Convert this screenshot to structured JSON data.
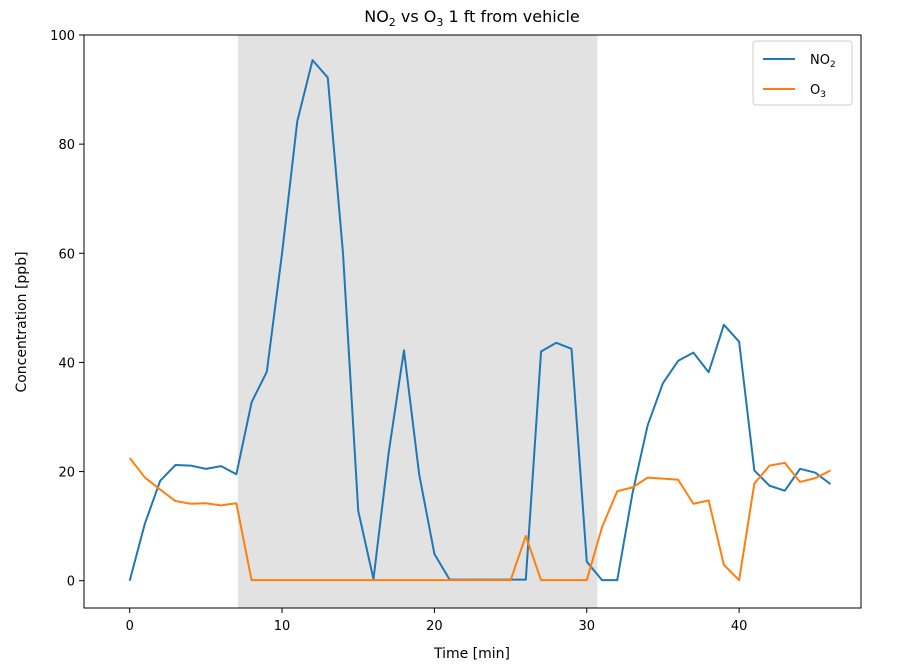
{
  "chart_data": {
    "type": "line",
    "title": {
      "prefix": "NO",
      "sub1": "2",
      "mid": " vs O",
      "sub2": "3",
      "suffix": " 1 ft from vehicle"
    },
    "xlabel": "Time [min]",
    "ylabel": "Concentration [ppb]",
    "xlim": [
      -3,
      48
    ],
    "ylim": [
      -5,
      100
    ],
    "xticks": [
      0,
      10,
      20,
      30,
      40
    ],
    "yticks": [
      0,
      20,
      40,
      60,
      80,
      100
    ],
    "shaded_region": {
      "x0": 7.1,
      "x1": 30.7,
      "color": "#e2e2e2"
    },
    "legend_location": "upper right",
    "series": [
      {
        "name": {
          "base": "NO",
          "sub": "2"
        },
        "color": "#1f77b4",
        "x": [
          0,
          1,
          2,
          3,
          4,
          5,
          6,
          7,
          8,
          9,
          10,
          11,
          12,
          13,
          14,
          15,
          16,
          17,
          18,
          19,
          20,
          21,
          22,
          23,
          24,
          25,
          26,
          27,
          28,
          29,
          30,
          31,
          32,
          33,
          34,
          35,
          36,
          37,
          38,
          39,
          40,
          41,
          42,
          43,
          44,
          45,
          46
        ],
        "y": [
          0,
          10.5,
          18.3,
          21.2,
          21.1,
          20.5,
          21.0,
          19.5,
          32.7,
          38.3,
          60.0,
          84.2,
          95.4,
          92.2,
          60.0,
          12.8,
          0.3,
          23.5,
          42.2,
          19.5,
          4.9,
          0.2,
          0.2,
          0.2,
          0.2,
          0.2,
          0.2,
          42.0,
          43.6,
          42.5,
          3.5,
          0.1,
          0.1,
          16.0,
          28.5,
          36.2,
          40.3,
          41.8,
          38.2,
          46.9,
          43.8,
          20.2,
          17.4,
          16.5,
          20.5,
          19.8,
          17.7
        ]
      },
      {
        "name": {
          "base": "O",
          "sub": "3"
        },
        "color": "#ff7f0e",
        "x": [
          0,
          1,
          2,
          3,
          4,
          5,
          6,
          7,
          8,
          9,
          10,
          11,
          12,
          13,
          14,
          15,
          16,
          17,
          18,
          19,
          20,
          21,
          22,
          23,
          24,
          25,
          26,
          27,
          28,
          29,
          30,
          31,
          32,
          33,
          34,
          35,
          36,
          37,
          38,
          39,
          40,
          41,
          42,
          43,
          44,
          45,
          46
        ],
        "y": [
          22.5,
          18.9,
          16.7,
          14.6,
          14.1,
          14.2,
          13.8,
          14.2,
          0.1,
          0.1,
          0.1,
          0.1,
          0.1,
          0.1,
          0.1,
          0.1,
          0.1,
          0.1,
          0.1,
          0.1,
          0.1,
          0.1,
          0.1,
          0.1,
          0.1,
          0.1,
          8.2,
          0.1,
          0.1,
          0.1,
          0.1,
          9.8,
          16.4,
          17.1,
          18.9,
          18.7,
          18.5,
          14.1,
          14.7,
          2.9,
          0.1,
          17.8,
          21.1,
          21.6,
          18.1,
          18.8,
          20.2
        ]
      }
    ]
  }
}
